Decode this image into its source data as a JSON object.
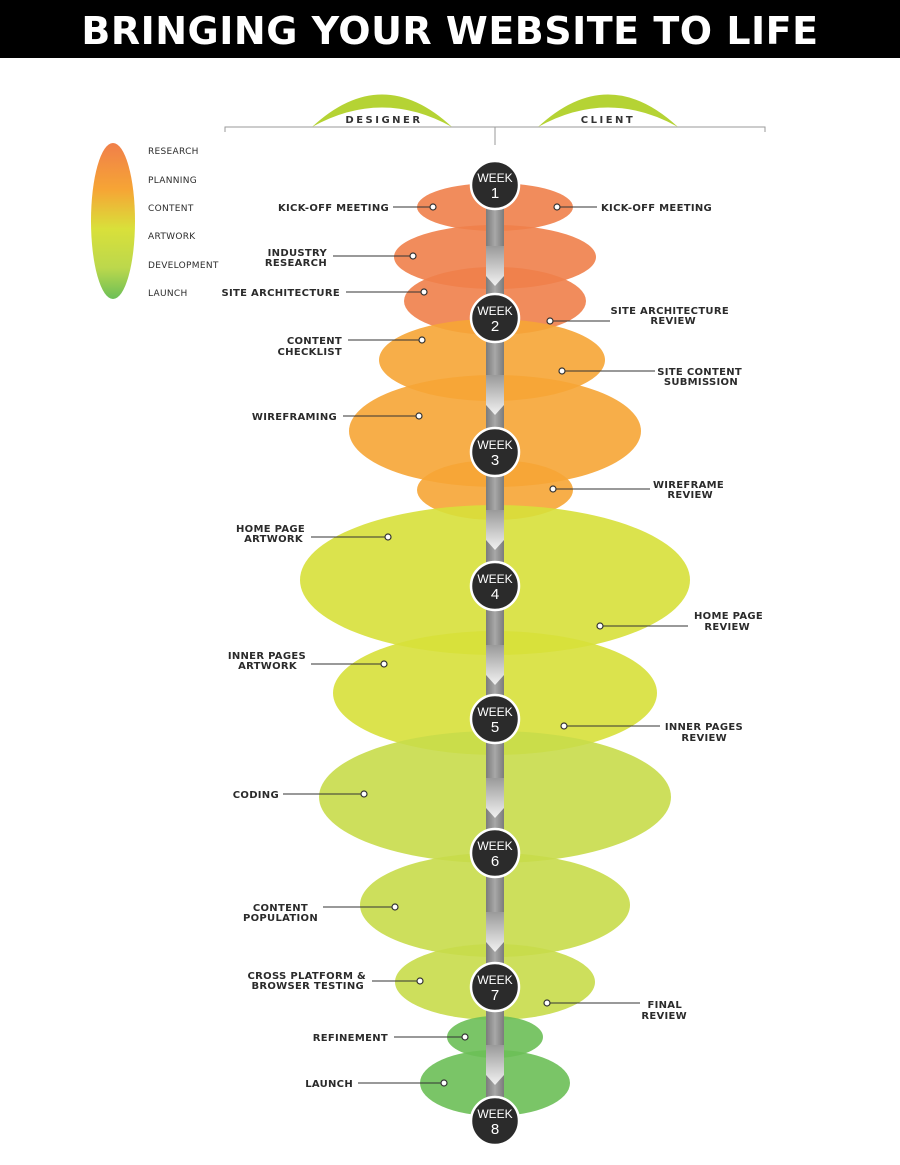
{
  "title": "BRINGING YOUR WEBSITE TO LIFE",
  "columns": {
    "designer": "DESIGNER",
    "client": "CLIENT"
  },
  "legend": [
    "RESEARCH",
    "PLANNING",
    "CONTENT",
    "ARTWORK",
    "DEVELOPMENT",
    "LAUNCH"
  ],
  "week_word": "WEEK",
  "weeks": [
    "1",
    "2",
    "3",
    "4",
    "5",
    "6",
    "7",
    "8"
  ],
  "tasks": {
    "designer": [
      [
        "KICK-OFF MEETING"
      ],
      [
        "INDUSTRY",
        "RESEARCH"
      ],
      [
        "SITE ARCHITECTURE"
      ],
      [
        "CONTENT",
        "CHECKLIST"
      ],
      [
        "WIREFRAMING"
      ],
      [
        "HOME PAGE",
        "ARTWORK"
      ],
      [
        "INNER PAGES",
        "ARTWORK"
      ],
      [
        "CODING"
      ],
      [
        "CONTENT",
        "POPULATION"
      ],
      [
        "CROSS PLATFORM &",
        "BROWSER TESTING"
      ],
      [
        "REFINEMENT"
      ],
      [
        "LAUNCH"
      ]
    ],
    "client": [
      [
        "KICK-OFF MEETING"
      ],
      [
        "SITE ARCHITECTURE",
        "REVIEW"
      ],
      [
        "SITE CONTENT",
        "SUBMISSION"
      ],
      [
        "WIREFRAME",
        "REVIEW"
      ],
      [
        "HOME PAGE",
        "REVIEW"
      ],
      [
        "INNER PAGES",
        "REVIEW"
      ],
      [
        "FINAL",
        "REVIEW"
      ]
    ]
  },
  "colors": {
    "research": "#f07f4a",
    "planning": "#f6a535",
    "content": "#d7e03a",
    "artwork": "#c8dc4a",
    "development": "#c3da52",
    "launch": "#6bbf57",
    "week_circle": "#2b2b2b",
    "header_bg": "#000000",
    "arc": "#b5d334"
  }
}
